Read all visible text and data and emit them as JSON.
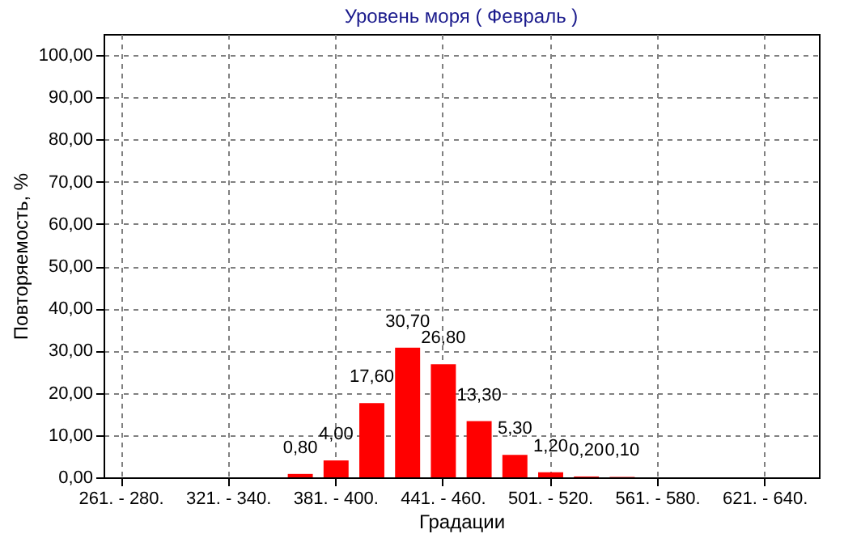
{
  "chart_data": {
    "type": "bar",
    "title": "Уровень моря     ( Февраль )",
    "xlabel": "Градации",
    "ylabel": "Повторяемость, %",
    "categories": [
      "261. - 280.",
      null,
      null,
      "321. - 340.",
      null,
      null,
      "381. - 400.",
      null,
      null,
      "441. - 460.",
      null,
      null,
      "501. - 520.",
      null,
      null,
      "561. - 580.",
      null,
      null,
      "621. - 640.",
      null
    ],
    "values": [
      0,
      0,
      0,
      0,
      0,
      0.8,
      4.0,
      17.6,
      30.7,
      26.8,
      13.3,
      5.3,
      1.2,
      0.2,
      0.1,
      0,
      0,
      0,
      0,
      0
    ],
    "value_labels": [
      null,
      null,
      null,
      null,
      null,
      "0,80",
      "4,00",
      "17,60",
      "30,70",
      "26,80",
      "13,30",
      "5,30",
      "1,20",
      "0,20",
      "0,10",
      null,
      null,
      null,
      null,
      null
    ],
    "color": "#ff0000",
    "ylim": [
      0,
      105
    ],
    "yticks": [
      {
        "value": 0,
        "label": "0,00"
      },
      {
        "value": 10,
        "label": "10,00"
      },
      {
        "value": 20,
        "label": "20,00"
      },
      {
        "value": 30,
        "label": "30,00"
      },
      {
        "value": 40,
        "label": "40,00"
      },
      {
        "value": 50,
        "label": "50,00"
      },
      {
        "value": 60,
        "label": "60,00"
      },
      {
        "value": 70,
        "label": "70,00"
      },
      {
        "value": 80,
        "label": "80,00"
      },
      {
        "value": 90,
        "label": "90,00"
      },
      {
        "value": 100,
        "label": "100,00"
      }
    ],
    "grid": true
  }
}
